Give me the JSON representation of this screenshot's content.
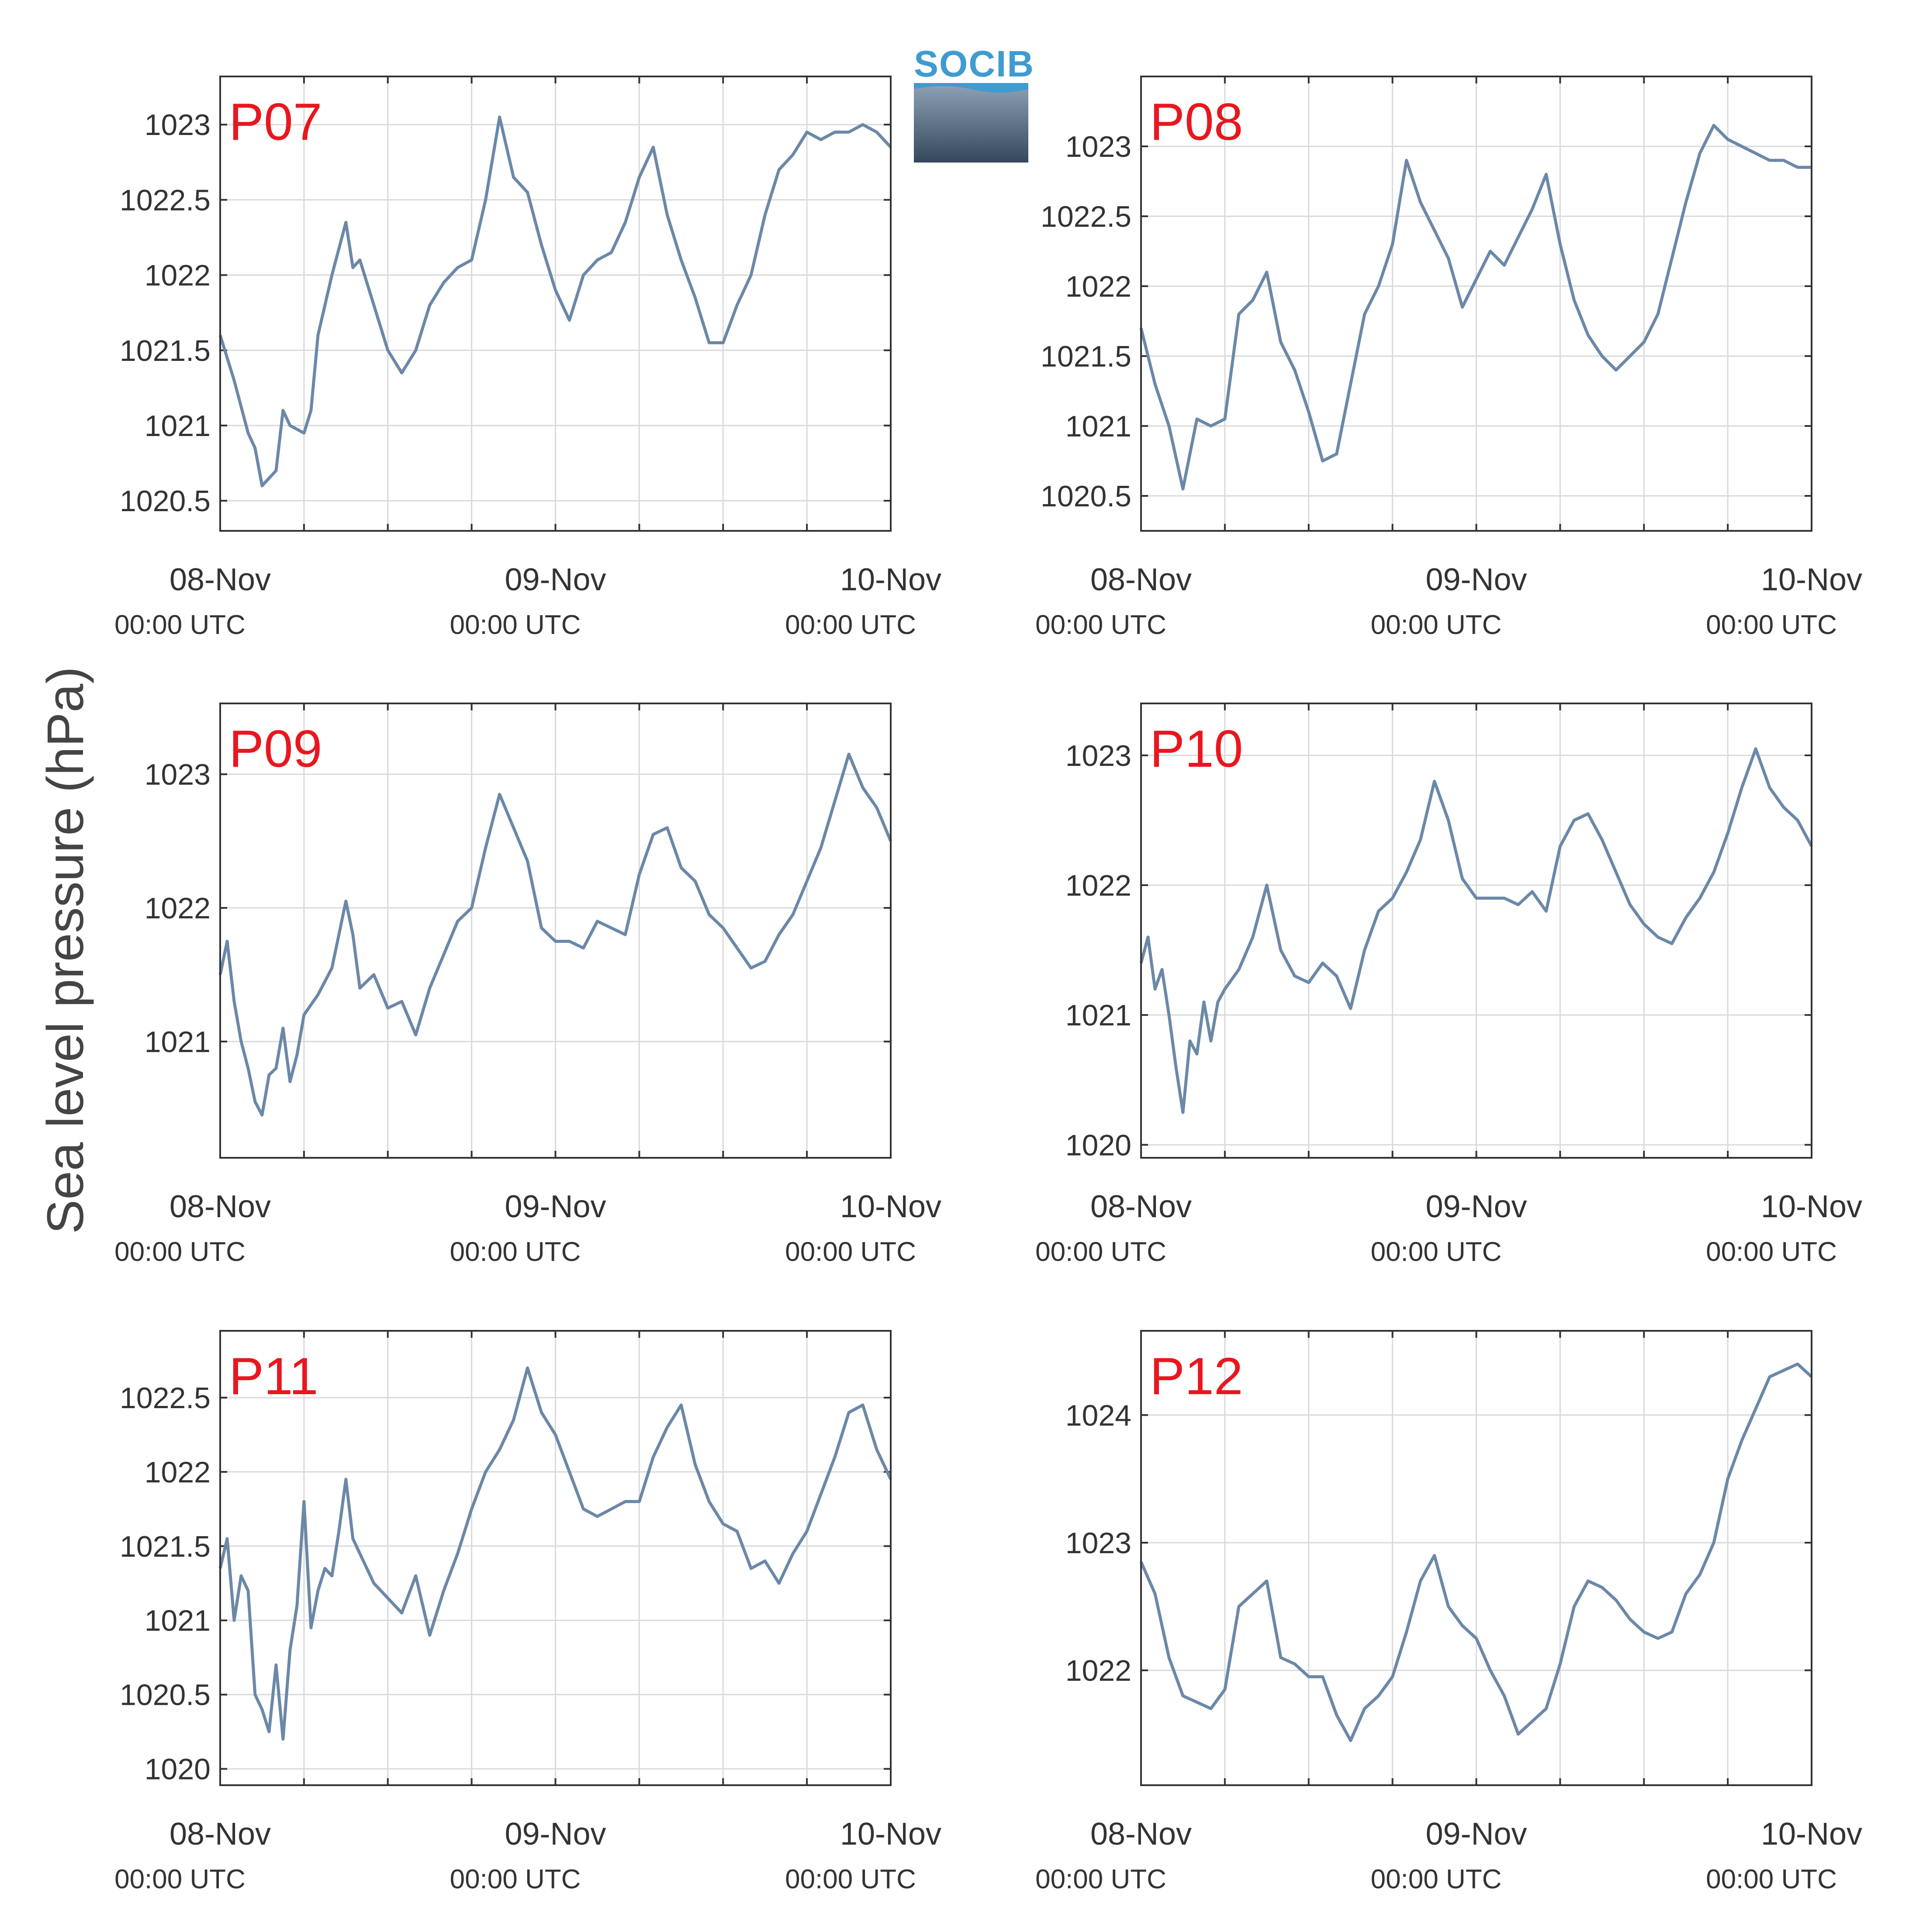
{
  "figure": {
    "ylabel": "Sea level pressure (hPa)",
    "logo_text": "SOCIB"
  },
  "colors": {
    "series": "#6b88a8",
    "panel_label": "#e8171f",
    "grid": "#dadada",
    "axis": "#333333"
  },
  "chart_data": [
    {
      "type": "line",
      "title": "P07",
      "x_ticks": [
        "08-Nov",
        "09-Nov",
        "10-Nov"
      ],
      "x_ticks_sub": [
        "00:00 UTC",
        "00:00 UTC",
        "00:00 UTC"
      ],
      "x_range_hours": [
        0,
        48
      ],
      "ylim": [
        1020.3,
        1023.32
      ],
      "y_ticks": [
        "1020.5",
        "1021",
        "1021.5",
        "1022",
        "1022.5",
        "1023"
      ],
      "grid": true,
      "x_hours": [
        0,
        1,
        2,
        2.5,
        3,
        4,
        4.5,
        5,
        6,
        6.5,
        7,
        8,
        9,
        9.5,
        10,
        11,
        12,
        13,
        14,
        15,
        16,
        17,
        18,
        19,
        20,
        21,
        22,
        23,
        24,
        25,
        26,
        27,
        28,
        29,
        30,
        31,
        32,
        33,
        34,
        35,
        36,
        37,
        38,
        39,
        40,
        41,
        42,
        43,
        44,
        45,
        46,
        47,
        48
      ],
      "values": [
        1021.6,
        1021.3,
        1020.95,
        1020.85,
        1020.6,
        1020.7,
        1021.1,
        1021.0,
        1020.95,
        1021.1,
        1021.6,
        1022.0,
        1022.35,
        1022.05,
        1022.1,
        1021.8,
        1021.5,
        1021.35,
        1021.5,
        1021.8,
        1021.95,
        1022.05,
        1022.1,
        1022.5,
        1023.05,
        1022.65,
        1022.55,
        1022.2,
        1021.9,
        1021.7,
        1022.0,
        1022.1,
        1022.15,
        1022.35,
        1022.65,
        1022.85,
        1022.4,
        1022.1,
        1021.85,
        1021.55,
        1021.55,
        1021.8,
        1022.0,
        1022.4,
        1022.7,
        1022.8,
        1022.95,
        1022.9,
        1022.95,
        1022.95,
        1023.0,
        1022.95,
        1022.85
      ]
    },
    {
      "type": "line",
      "title": "P08",
      "x_ticks": [
        "08-Nov",
        "09-Nov",
        "10-Nov"
      ],
      "x_ticks_sub": [
        "00:00 UTC",
        "00:00 UTC",
        "00:00 UTC"
      ],
      "x_range_hours": [
        0,
        48
      ],
      "ylim": [
        1020.25,
        1023.5
      ],
      "y_ticks": [
        "1020.5",
        "1021",
        "1021.5",
        "1022",
        "1022.5",
        "1023"
      ],
      "grid": true,
      "x_hours": [
        0,
        1,
        2,
        3,
        4,
        5,
        6,
        7,
        8,
        9,
        10,
        11,
        12,
        13,
        14,
        15,
        16,
        17,
        18,
        19,
        20,
        21,
        22,
        23,
        24,
        25,
        26,
        27,
        28,
        29,
        30,
        31,
        32,
        33,
        34,
        35,
        36,
        37,
        38,
        39,
        40,
        41,
        42,
        43,
        44,
        45,
        46,
        47,
        48
      ],
      "values": [
        1021.7,
        1021.3,
        1021.0,
        1020.55,
        1021.05,
        1021.0,
        1021.05,
        1021.8,
        1021.9,
        1022.1,
        1021.6,
        1021.4,
        1021.1,
        1020.75,
        1020.8,
        1021.3,
        1021.8,
        1022.0,
        1022.3,
        1022.9,
        1022.6,
        1022.4,
        1022.2,
        1021.85,
        1022.05,
        1022.25,
        1022.15,
        1022.35,
        1022.55,
        1022.8,
        1022.3,
        1021.9,
        1021.65,
        1021.5,
        1021.4,
        1021.5,
        1021.6,
        1021.8,
        1022.2,
        1022.6,
        1022.95,
        1023.15,
        1023.05,
        1023.0,
        1022.95,
        1022.9,
        1022.9,
        1022.85,
        1022.85
      ]
    },
    {
      "type": "line",
      "title": "P09",
      "x_ticks": [
        "08-Nov",
        "09-Nov",
        "10-Nov"
      ],
      "x_ticks_sub": [
        "00:00 UTC",
        "00:00 UTC",
        "00:00 UTC"
      ],
      "x_range_hours": [
        0,
        48
      ],
      "ylim": [
        1020.13,
        1023.53
      ],
      "y_ticks": [
        "1021",
        "1022",
        "1023"
      ],
      "grid": true,
      "x_hours": [
        0,
        0.5,
        1,
        1.5,
        2,
        2.5,
        3,
        3.5,
        4,
        4.5,
        5,
        5.5,
        6,
        7,
        8,
        9,
        9.5,
        10,
        11,
        12,
        13,
        14,
        15,
        16,
        17,
        18,
        19,
        20,
        21,
        22,
        23,
        24,
        25,
        26,
        27,
        28,
        29,
        30,
        31,
        32,
        33,
        34,
        35,
        36,
        37,
        38,
        39,
        40,
        41,
        42,
        43,
        44,
        45,
        46,
        47,
        48
      ],
      "values": [
        1021.5,
        1021.75,
        1021.3,
        1021.0,
        1020.8,
        1020.55,
        1020.45,
        1020.75,
        1020.8,
        1021.1,
        1020.7,
        1020.9,
        1021.2,
        1021.35,
        1021.55,
        1022.05,
        1021.8,
        1021.4,
        1021.5,
        1021.25,
        1021.3,
        1021.05,
        1021.4,
        1021.65,
        1021.9,
        1022.0,
        1022.45,
        1022.85,
        1022.6,
        1022.35,
        1021.85,
        1021.75,
        1021.75,
        1021.7,
        1021.9,
        1021.85,
        1021.8,
        1022.25,
        1022.55,
        1022.6,
        1022.3,
        1022.2,
        1021.95,
        1021.85,
        1021.7,
        1021.55,
        1021.6,
        1021.8,
        1021.95,
        1022.2,
        1022.45,
        1022.8,
        1023.15,
        1022.9,
        1022.75,
        1022.5
      ]
    },
    {
      "type": "line",
      "title": "P10",
      "x_ticks": [
        "08-Nov",
        "09-Nov",
        "10-Nov"
      ],
      "x_ticks_sub": [
        "00:00 UTC",
        "00:00 UTC",
        "00:00 UTC"
      ],
      "x_range_hours": [
        0,
        48
      ],
      "ylim": [
        1019.9,
        1023.4
      ],
      "y_ticks": [
        "1020",
        "1021",
        "1022",
        "1023"
      ],
      "grid": true,
      "x_hours": [
        0,
        0.5,
        1,
        1.5,
        2,
        2.5,
        3,
        3.5,
        4,
        4.5,
        5,
        5.5,
        6,
        7,
        8,
        9,
        9.5,
        10,
        11,
        12,
        13,
        14,
        15,
        16,
        17,
        18,
        19,
        20,
        21,
        22,
        23,
        24,
        25,
        26,
        27,
        28,
        29,
        30,
        31,
        32,
        33,
        34,
        35,
        36,
        37,
        38,
        39,
        40,
        41,
        42,
        43,
        44,
        45,
        46,
        47,
        48
      ],
      "values": [
        1021.4,
        1021.6,
        1021.2,
        1021.35,
        1021.0,
        1020.6,
        1020.25,
        1020.8,
        1020.7,
        1021.1,
        1020.8,
        1021.1,
        1021.2,
        1021.35,
        1021.6,
        1022.0,
        1021.75,
        1021.5,
        1021.3,
        1021.25,
        1021.4,
        1021.3,
        1021.05,
        1021.5,
        1021.8,
        1021.9,
        1022.1,
        1022.35,
        1022.8,
        1022.5,
        1022.05,
        1021.9,
        1021.9,
        1021.9,
        1021.85,
        1021.95,
        1021.8,
        1022.3,
        1022.5,
        1022.55,
        1022.35,
        1022.1,
        1021.85,
        1021.7,
        1021.6,
        1021.55,
        1021.75,
        1021.9,
        1022.1,
        1022.4,
        1022.75,
        1023.05,
        1022.75,
        1022.6,
        1022.5,
        1022.3
      ]
    },
    {
      "type": "line",
      "title": "P11",
      "x_ticks": [
        "08-Nov",
        "09-Nov",
        "10-Nov"
      ],
      "x_ticks_sub": [
        "00:00 UTC",
        "00:00 UTC",
        "00:00 UTC"
      ],
      "x_range_hours": [
        0,
        48
      ],
      "ylim": [
        1019.89,
        1022.95
      ],
      "y_ticks": [
        "1020",
        "1020.5",
        "1021",
        "1021.5",
        "1022",
        "1022.5"
      ],
      "grid": true,
      "x_hours": [
        0,
        0.5,
        1,
        1.5,
        2,
        2.5,
        3,
        3.5,
        4,
        4.5,
        5,
        5.5,
        6,
        6.5,
        7,
        7.5,
        8,
        8.5,
        9,
        9.5,
        10,
        11,
        12,
        13,
        14,
        15,
        16,
        17,
        18,
        19,
        20,
        21,
        22,
        23,
        24,
        25,
        26,
        27,
        28,
        29,
        30,
        31,
        32,
        33,
        34,
        35,
        36,
        37,
        38,
        39,
        40,
        41,
        42,
        43,
        44,
        45,
        46,
        47,
        48
      ],
      "values": [
        1021.35,
        1021.55,
        1021.0,
        1021.3,
        1021.2,
        1020.5,
        1020.4,
        1020.25,
        1020.7,
        1020.2,
        1020.8,
        1021.1,
        1021.8,
        1020.95,
        1021.2,
        1021.35,
        1021.3,
        1021.6,
        1021.95,
        1021.55,
        1021.45,
        1021.25,
        1021.15,
        1021.05,
        1021.3,
        1020.9,
        1021.2,
        1021.45,
        1021.75,
        1022.0,
        1022.15,
        1022.35,
        1022.7,
        1022.4,
        1022.25,
        1022.0,
        1021.75,
        1021.7,
        1021.75,
        1021.8,
        1021.8,
        1022.1,
        1022.3,
        1022.45,
        1022.05,
        1021.8,
        1021.65,
        1021.6,
        1021.35,
        1021.4,
        1021.25,
        1021.45,
        1021.6,
        1021.85,
        1022.1,
        1022.4,
        1022.45,
        1022.15,
        1021.95
      ]
    },
    {
      "type": "line",
      "title": "P12",
      "x_ticks": [
        "08-Nov",
        "09-Nov",
        "10-Nov"
      ],
      "x_ticks_sub": [
        "00:00 UTC",
        "00:00 UTC",
        "00:00 UTC"
      ],
      "x_range_hours": [
        0,
        48
      ],
      "ylim": [
        1021.1,
        1024.66
      ],
      "y_ticks": [
        "1022",
        "1023",
        "1024"
      ],
      "grid": true,
      "x_hours": [
        0,
        1,
        2,
        3,
        4,
        5,
        6,
        7,
        8,
        9,
        10,
        11,
        12,
        13,
        14,
        15,
        16,
        17,
        18,
        19,
        20,
        21,
        22,
        23,
        24,
        25,
        26,
        27,
        28,
        29,
        30,
        31,
        32,
        33,
        34,
        35,
        36,
        37,
        38,
        39,
        40,
        41,
        42,
        43,
        44,
        45,
        46,
        47,
        48
      ],
      "values": [
        1022.85,
        1022.6,
        1022.1,
        1021.8,
        1021.75,
        1021.7,
        1021.85,
        1022.5,
        1022.6,
        1022.7,
        1022.1,
        1022.05,
        1021.95,
        1021.95,
        1021.65,
        1021.45,
        1021.7,
        1021.8,
        1021.95,
        1022.3,
        1022.7,
        1022.9,
        1022.5,
        1022.35,
        1022.25,
        1022.0,
        1021.8,
        1021.5,
        1021.6,
        1021.7,
        1022.05,
        1022.5,
        1022.7,
        1022.65,
        1022.55,
        1022.4,
        1022.3,
        1022.25,
        1022.3,
        1022.6,
        1022.75,
        1023.0,
        1023.5,
        1023.8,
        1024.05,
        1024.3,
        1024.35,
        1024.4,
        1024.3
      ]
    }
  ]
}
